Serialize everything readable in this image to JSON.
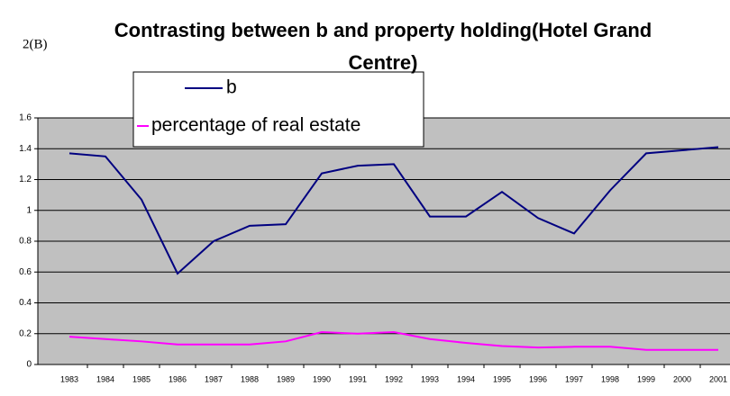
{
  "chart_data": {
    "type": "line",
    "title": "Contrasting between b and property holding(Hotel Grand Centre)",
    "y_label": "2(B)",
    "categories": [
      "1983",
      "1984",
      "1985",
      "1986",
      "1987",
      "1988",
      "1989",
      "1990",
      "1991",
      "1992",
      "1993",
      "1994",
      "1995",
      "1996",
      "1997",
      "1998",
      "1999",
      "2000",
      "2001"
    ],
    "series": [
      {
        "name": "b",
        "color": "#000080",
        "values": [
          1.37,
          1.35,
          1.07,
          0.59,
          0.8,
          0.9,
          0.91,
          1.24,
          1.29,
          1.3,
          0.96,
          0.96,
          1.12,
          0.95,
          0.85,
          1.13,
          1.37,
          1.39,
          1.41
        ]
      },
      {
        "name": "percentage of real estate",
        "color": "#ff00ff",
        "values": [
          0.18,
          0.165,
          0.15,
          0.13,
          0.13,
          0.13,
          0.15,
          0.21,
          0.2,
          0.21,
          0.165,
          0.14,
          0.12,
          0.11,
          0.115,
          0.115,
          0.095,
          0.095,
          0.095
        ]
      }
    ],
    "ylim": [
      0,
      1.6
    ],
    "yticks": [
      0,
      0.2,
      0.4,
      0.6,
      0.8,
      1,
      1.2,
      1.4,
      1.6
    ],
    "grid": true,
    "plot_background": "#c0c0c0",
    "legend": "upper left"
  }
}
